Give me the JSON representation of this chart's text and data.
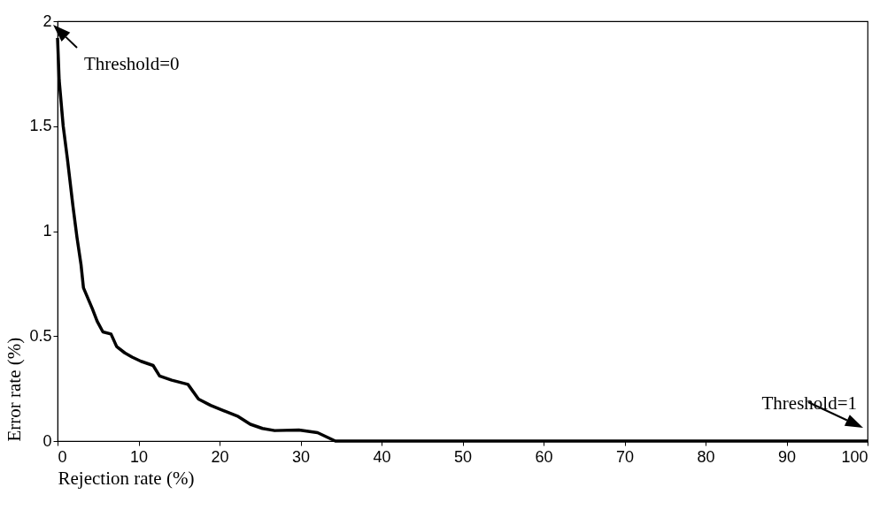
{
  "chart_data": {
    "type": "line",
    "xlabel": "Rejection rate (%)",
    "ylabel": "Error rate (%)",
    "x": [
      0,
      0.2,
      0.7,
      1.2,
      1.9,
      2.4,
      2.9,
      3.2,
      4.3,
      4.9,
      5.6,
      6.6,
      7.3,
      8.3,
      9.2,
      10.3,
      11.8,
      12.6,
      14.1,
      16.1,
      17.4,
      18.9,
      20.5,
      22.3,
      23.8,
      25.3,
      26.8,
      29.8,
      32.1,
      34.3,
      100
    ],
    "series": [
      {
        "color": "#000000",
        "values": [
          1.92,
          1.72,
          1.5,
          1.35,
          1.12,
          0.97,
          0.84,
          0.73,
          0.63,
          0.57,
          0.52,
          0.51,
          0.45,
          0.42,
          0.4,
          0.38,
          0.36,
          0.31,
          0.29,
          0.27,
          0.2,
          0.17,
          0.145,
          0.117,
          0.08,
          0.06,
          0.05,
          0.053,
          0.04,
          0,
          0
        ]
      }
    ],
    "xlim": [
      0,
      100
    ],
    "xticks": [
      0,
      10,
      20,
      30,
      40,
      50,
      60,
      70,
      80,
      90,
      100
    ],
    "ylim": [
      0,
      2
    ],
    "yticks": [
      0,
      0.5,
      1,
      1.5,
      2
    ],
    "grid": false,
    "marker": "none",
    "line_style": "solid",
    "annotations": [
      {
        "text": "Threshold=0",
        "x": 0,
        "y": 1.92
      },
      {
        "text": "Threshold=1",
        "x": 100,
        "y": 0
      }
    ]
  }
}
